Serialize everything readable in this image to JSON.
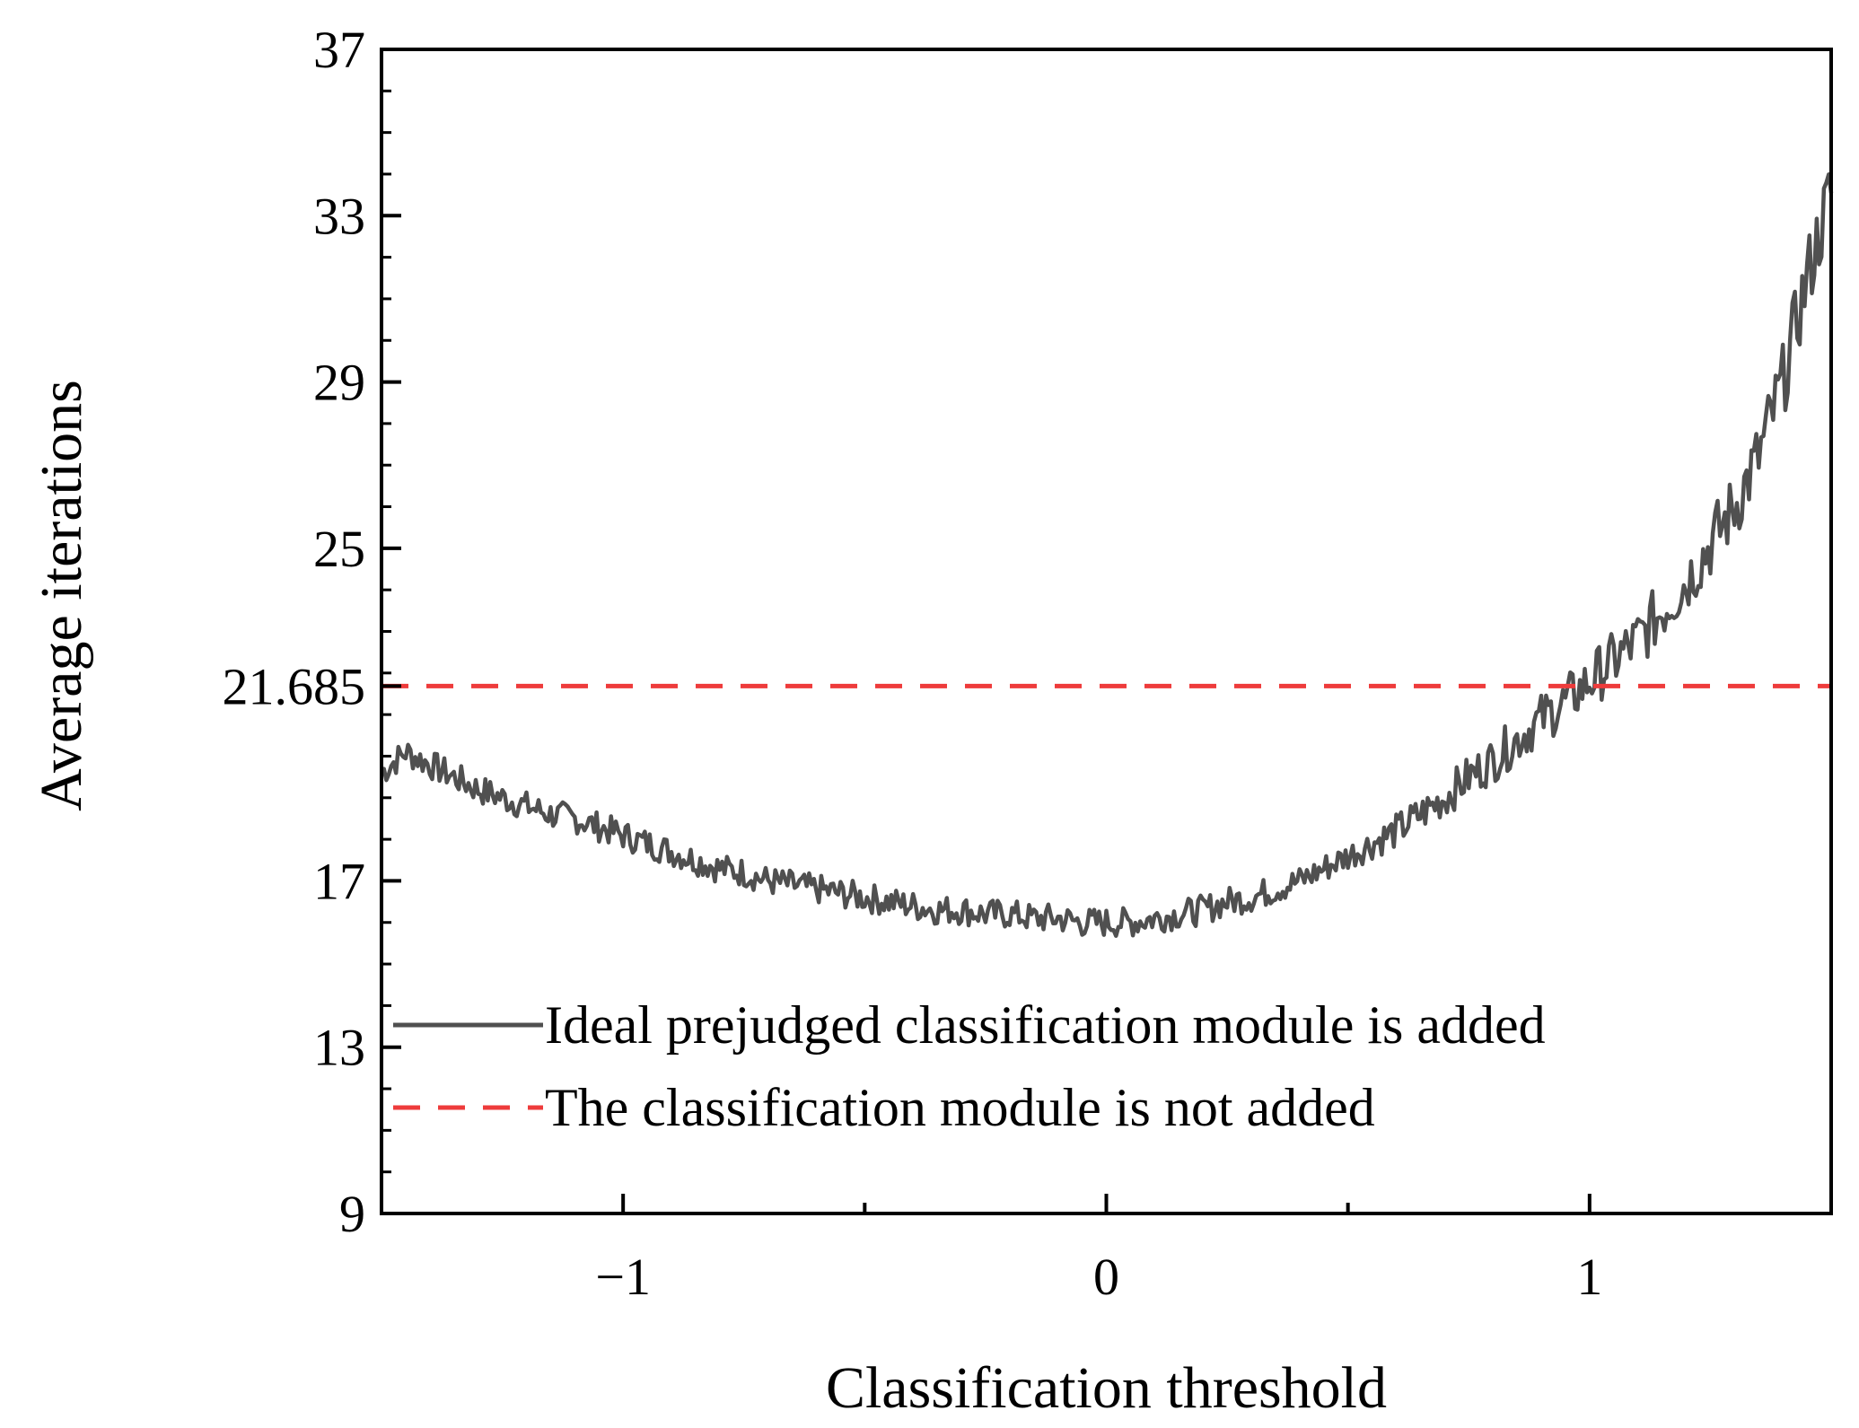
{
  "chart_data": {
    "type": "line",
    "xlabel": "Classification threshold",
    "ylabel": "Average iterations",
    "xlim": [
      -1.5,
      1.5
    ],
    "ylim": [
      9,
      37
    ],
    "x_ticks": [
      -1,
      0,
      1
    ],
    "x_tick_labels": [
      "−1",
      "0",
      "1"
    ],
    "y_ticks": [
      9,
      13,
      17,
      21.685,
      25,
      29,
      33,
      37
    ],
    "y_tick_labels": [
      "9",
      "13",
      "17",
      "21.685",
      "25",
      "29",
      "33",
      "37"
    ],
    "grid": false,
    "legend_position": "bottom-left",
    "series": [
      {
        "name": "Ideal prejudged classification module is added",
        "color": "#505050",
        "style": "solid",
        "x": [
          -1.5,
          -1.45,
          -1.4,
          -1.35,
          -1.3,
          -1.25,
          -1.2,
          -1.15,
          -1.1,
          -1.05,
          -1.0,
          -0.95,
          -0.9,
          -0.85,
          -0.8,
          -0.75,
          -0.7,
          -0.65,
          -0.6,
          -0.55,
          -0.5,
          -0.45,
          -0.4,
          -0.35,
          -0.3,
          -0.25,
          -0.2,
          -0.15,
          -0.1,
          -0.05,
          0.0,
          0.05,
          0.1,
          0.15,
          0.2,
          0.25,
          0.3,
          0.35,
          0.4,
          0.45,
          0.5,
          0.55,
          0.6,
          0.65,
          0.7,
          0.75,
          0.8,
          0.85,
          0.9,
          0.95,
          1.0,
          1.05,
          1.1,
          1.15,
          1.2,
          1.25,
          1.3,
          1.35,
          1.4,
          1.45,
          1.5
        ],
        "y": [
          19.6,
          20.1,
          19.8,
          19.5,
          19.2,
          19.0,
          18.8,
          18.6,
          18.5,
          18.3,
          18.1,
          17.9,
          17.7,
          17.5,
          17.3,
          17.2,
          17.0,
          16.9,
          16.8,
          16.7,
          16.6,
          16.5,
          16.4,
          16.3,
          16.3,
          16.2,
          16.2,
          16.1,
          16.1,
          16.0,
          16.0,
          16.0,
          16.1,
          16.2,
          16.3,
          16.5,
          16.6,
          16.8,
          17.0,
          17.3,
          17.6,
          17.9,
          18.2,
          18.6,
          19.0,
          19.5,
          19.9,
          20.4,
          20.9,
          21.3,
          21.8,
          22.3,
          22.8,
          23.5,
          24.2,
          25.1,
          26.0,
          27.2,
          29.0,
          31.5,
          33.6
        ]
      },
      {
        "name": "The classification module is not added",
        "color": "#ee3b3b",
        "style": "dashed",
        "x": [
          -1.5,
          1.5
        ],
        "y": [
          21.685,
          21.685
        ]
      }
    ]
  }
}
